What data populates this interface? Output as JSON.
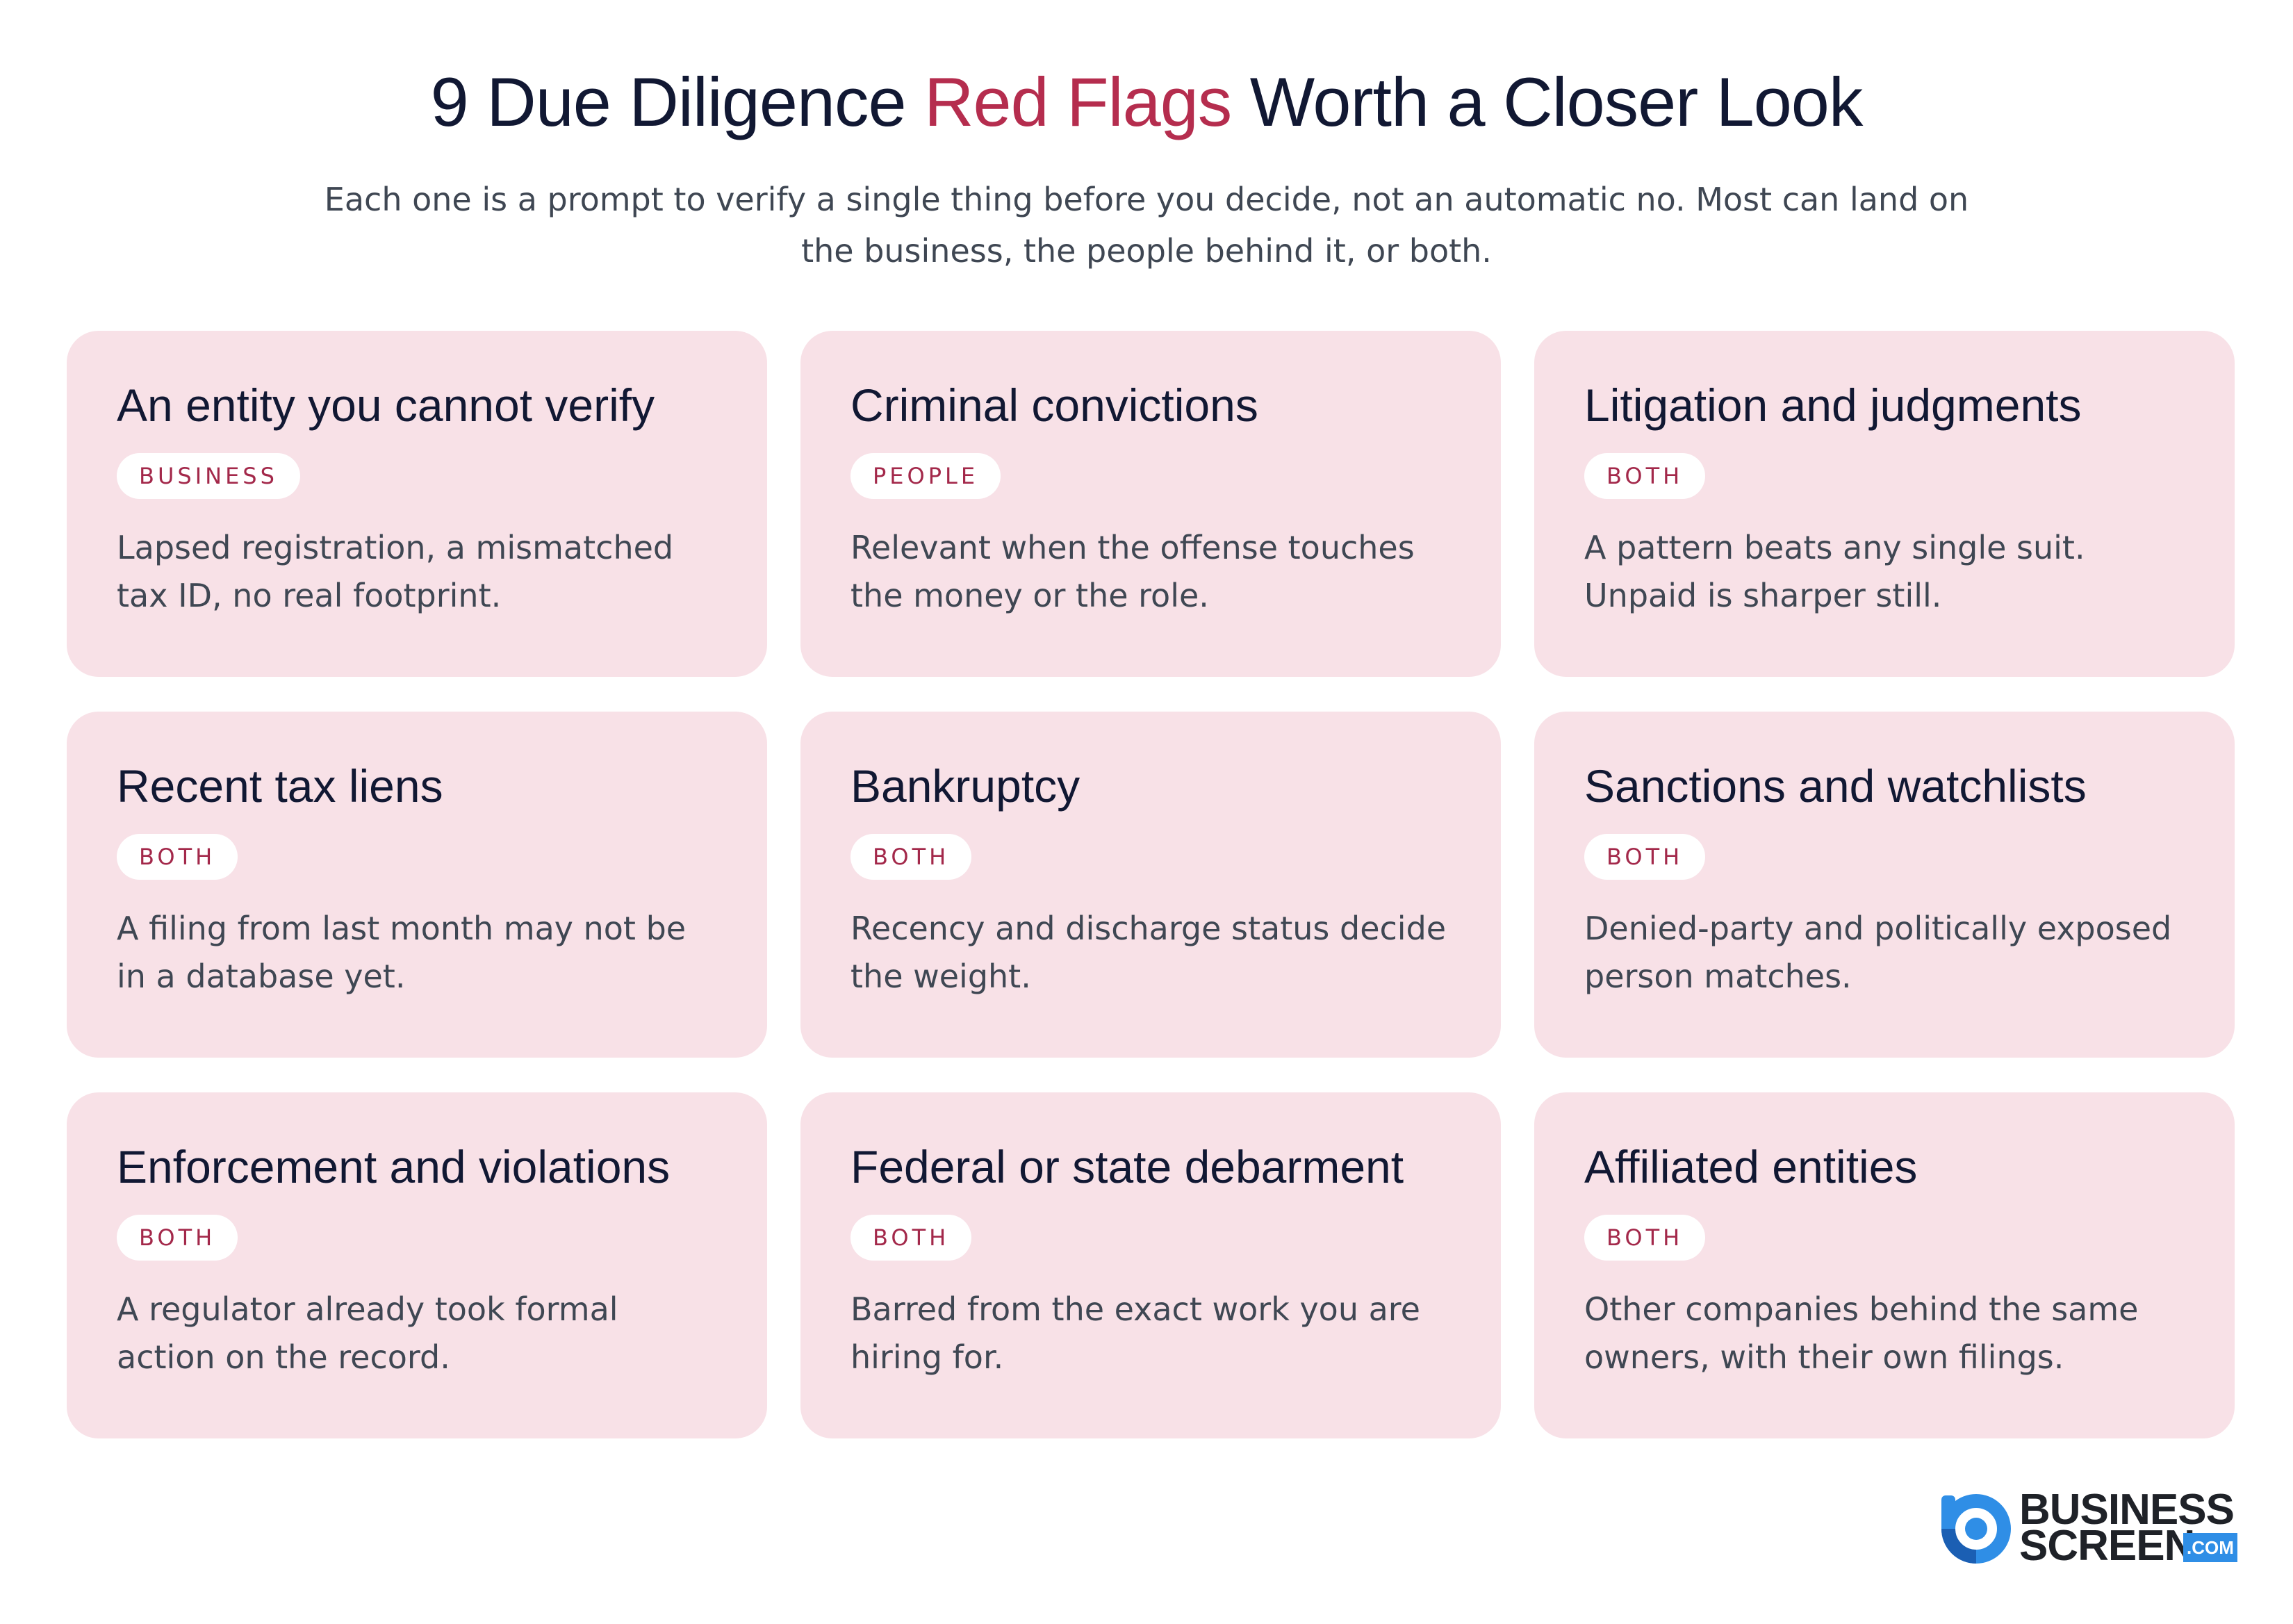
{
  "header": {
    "title_before": "9 Due Diligence ",
    "title_accent": "Red Flags",
    "title_after": " Worth a Closer Look",
    "subtitle": "Each one is a prompt to verify a single thing before you decide, not an automatic no. Most can land on the business, the people behind it, or both."
  },
  "cards": [
    {
      "title": "An entity you cannot verify",
      "tag": "BUSINESS",
      "description": "Lapsed registration, a mismatched tax ID, no real footprint."
    },
    {
      "title": "Criminal convictions",
      "tag": "PEOPLE",
      "description": "Relevant when the offense touches the money or the role."
    },
    {
      "title": "Litigation and judgments",
      "tag": "BOTH",
      "description": "A pattern beats any single suit. Unpaid is sharper still."
    },
    {
      "title": "Recent tax liens",
      "tag": "BOTH",
      "description": "A filing from last month may not be in a database yet."
    },
    {
      "title": "Bankruptcy",
      "tag": "BOTH",
      "description": "Recency and discharge status decide the weight."
    },
    {
      "title": "Sanctions and watchlists",
      "tag": "BOTH",
      "description": "Denied-party and politically exposed person matches."
    },
    {
      "title": "Enforcement and violations",
      "tag": "BOTH",
      "description": "A regulator already took formal action on the record."
    },
    {
      "title": "Federal or state debarment",
      "tag": "BOTH",
      "description": "Barred from the exact work you are hiring for."
    },
    {
      "title": "Affiliated entities",
      "tag": "BOTH",
      "description": "Other companies behind the same owners, with their own filings."
    }
  ],
  "logo": {
    "line1": "BUSINESS",
    "line2": "SCREEN",
    "suffix": ".COM",
    "icon": "businessscreen-logo-icon"
  },
  "colors": {
    "title": "#111833",
    "accent": "#b52d4e",
    "card_background": "#f8e1e7",
    "tag_text": "#a3284a",
    "body_text": "#3f4753",
    "logo_blue": "#2f8ee6"
  }
}
